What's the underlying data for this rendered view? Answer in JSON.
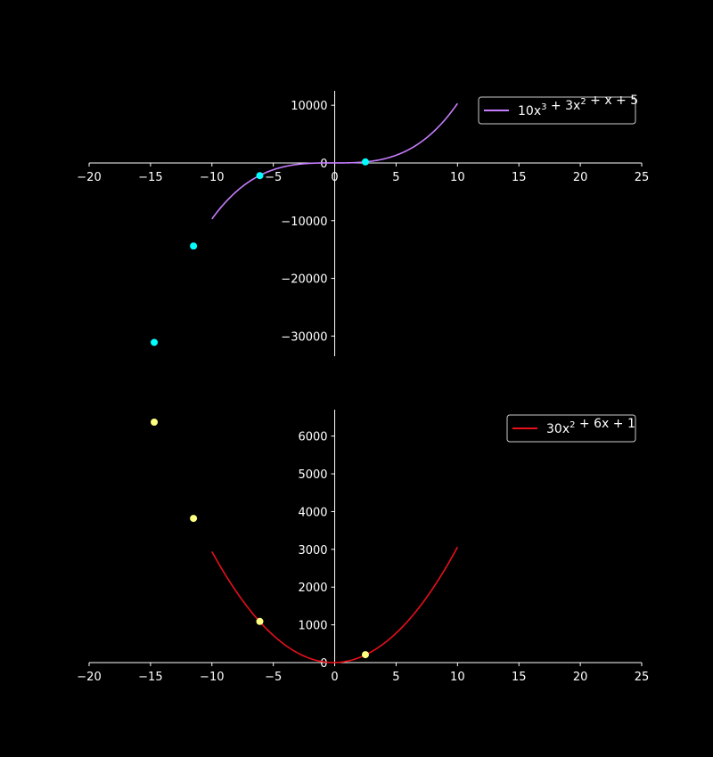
{
  "figure": {
    "background": "#000000",
    "foreground": "#ffffff"
  },
  "chart_data": [
    {
      "type": "line",
      "title": "",
      "xlabel": "",
      "ylabel": "",
      "xlim": [
        -20,
        25
      ],
      "ylim": [
        -33500,
        12500
      ],
      "xticks": [
        -20,
        -15,
        -10,
        -5,
        0,
        5,
        10,
        15,
        20,
        25
      ],
      "yticks": [
        -30000,
        -20000,
        -10000,
        0,
        10000
      ],
      "grid": false,
      "spines": "centered",
      "legend": {
        "position": "top-right",
        "entries": [
          {
            "label_base": "10x",
            "label_sup": "3",
            "label_mid": " + 3x",
            "label_sup2": "2",
            "label_tail": " + x + 5",
            "color": "#c77dff"
          }
        ]
      },
      "series": [
        {
          "kind": "line",
          "label": "10x^3 + 3x^2 + x + 5",
          "coefficients": [
            10,
            3,
            1,
            5
          ],
          "x_range": [
            -10,
            10
          ],
          "color": "#c77dff"
        },
        {
          "kind": "scatter",
          "color": "#00ffff",
          "points": [
            {
              "x": -14.7,
              "y": -31100
            },
            {
              "x": -11.5,
              "y": -14400
            },
            {
              "x": -6.1,
              "y": -2200
            },
            {
              "x": 2.5,
              "y": 180
            }
          ]
        }
      ]
    },
    {
      "type": "line",
      "title": "",
      "xlabel": "",
      "ylabel": "",
      "xlim": [
        -20,
        25
      ],
      "ylim": [
        0,
        6700
      ],
      "xticks": [
        -20,
        -15,
        -10,
        -5,
        0,
        5,
        10,
        15,
        20,
        25
      ],
      "yticks": [
        0,
        1000,
        2000,
        3000,
        4000,
        5000,
        6000
      ],
      "grid": false,
      "spines": "centered",
      "legend": {
        "position": "top-right",
        "entries": [
          {
            "label_base": "30x",
            "label_sup": "2",
            "label_mid": " + 6x + 1",
            "label_sup2": "",
            "label_tail": "",
            "color": "#e8101a"
          }
        ]
      },
      "series": [
        {
          "kind": "line",
          "label": "30x^2 + 6x + 1",
          "coefficients": [
            30,
            6,
            1
          ],
          "x_range": [
            -10,
            10
          ],
          "color": "#e8101a"
        },
        {
          "kind": "scatter",
          "color": "#ffff80",
          "points": [
            {
              "x": -14.7,
              "y": 6370
            },
            {
              "x": -11.5,
              "y": 3820
            },
            {
              "x": -6.1,
              "y": 1090
            },
            {
              "x": 2.5,
              "y": 210
            }
          ]
        }
      ]
    }
  ]
}
